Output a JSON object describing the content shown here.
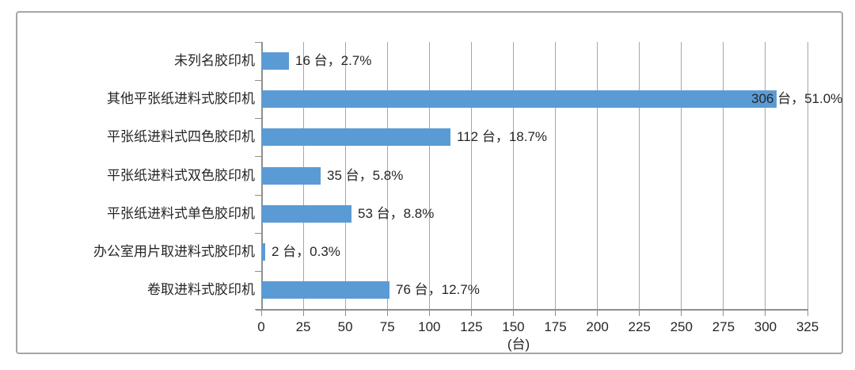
{
  "chart_data": {
    "type": "bar",
    "orientation": "horizontal",
    "title": "",
    "categories": [
      "未列名胶印机",
      "其他平张纸进料式胶印机",
      "平张纸进料式四色胶印机",
      "平张纸进料式双色胶印机",
      "平张纸进料式单色胶印机",
      "办公室用片取进料式胶印机",
      "卷取进料式胶印机"
    ],
    "values": [
      16,
      306,
      112,
      35,
      53,
      2,
      76
    ],
    "percents": [
      2.7,
      51.0,
      18.7,
      5.8,
      8.8,
      0.3,
      12.7
    ],
    "data_labels": [
      "16 台，2.7%",
      "306 台，51.0%",
      "112 台，18.7%",
      "35 台，5.8%",
      "53 台，8.8%",
      "2 台，0.3%",
      "76 台，12.7%"
    ],
    "xlabel": "(台)",
    "ylabel": "",
    "xlim": [
      0,
      325
    ],
    "xticks": [
      0,
      25,
      50,
      75,
      100,
      125,
      150,
      175,
      200,
      225,
      250,
      275,
      300,
      325
    ],
    "grid": true,
    "legend": false,
    "bar_color": "#5b9bd5",
    "gridline_color": "#a6a6a6",
    "axis_color": "#8f8f8f",
    "text_color": "#262626",
    "frame_border_color": "#a6a6a6"
  }
}
